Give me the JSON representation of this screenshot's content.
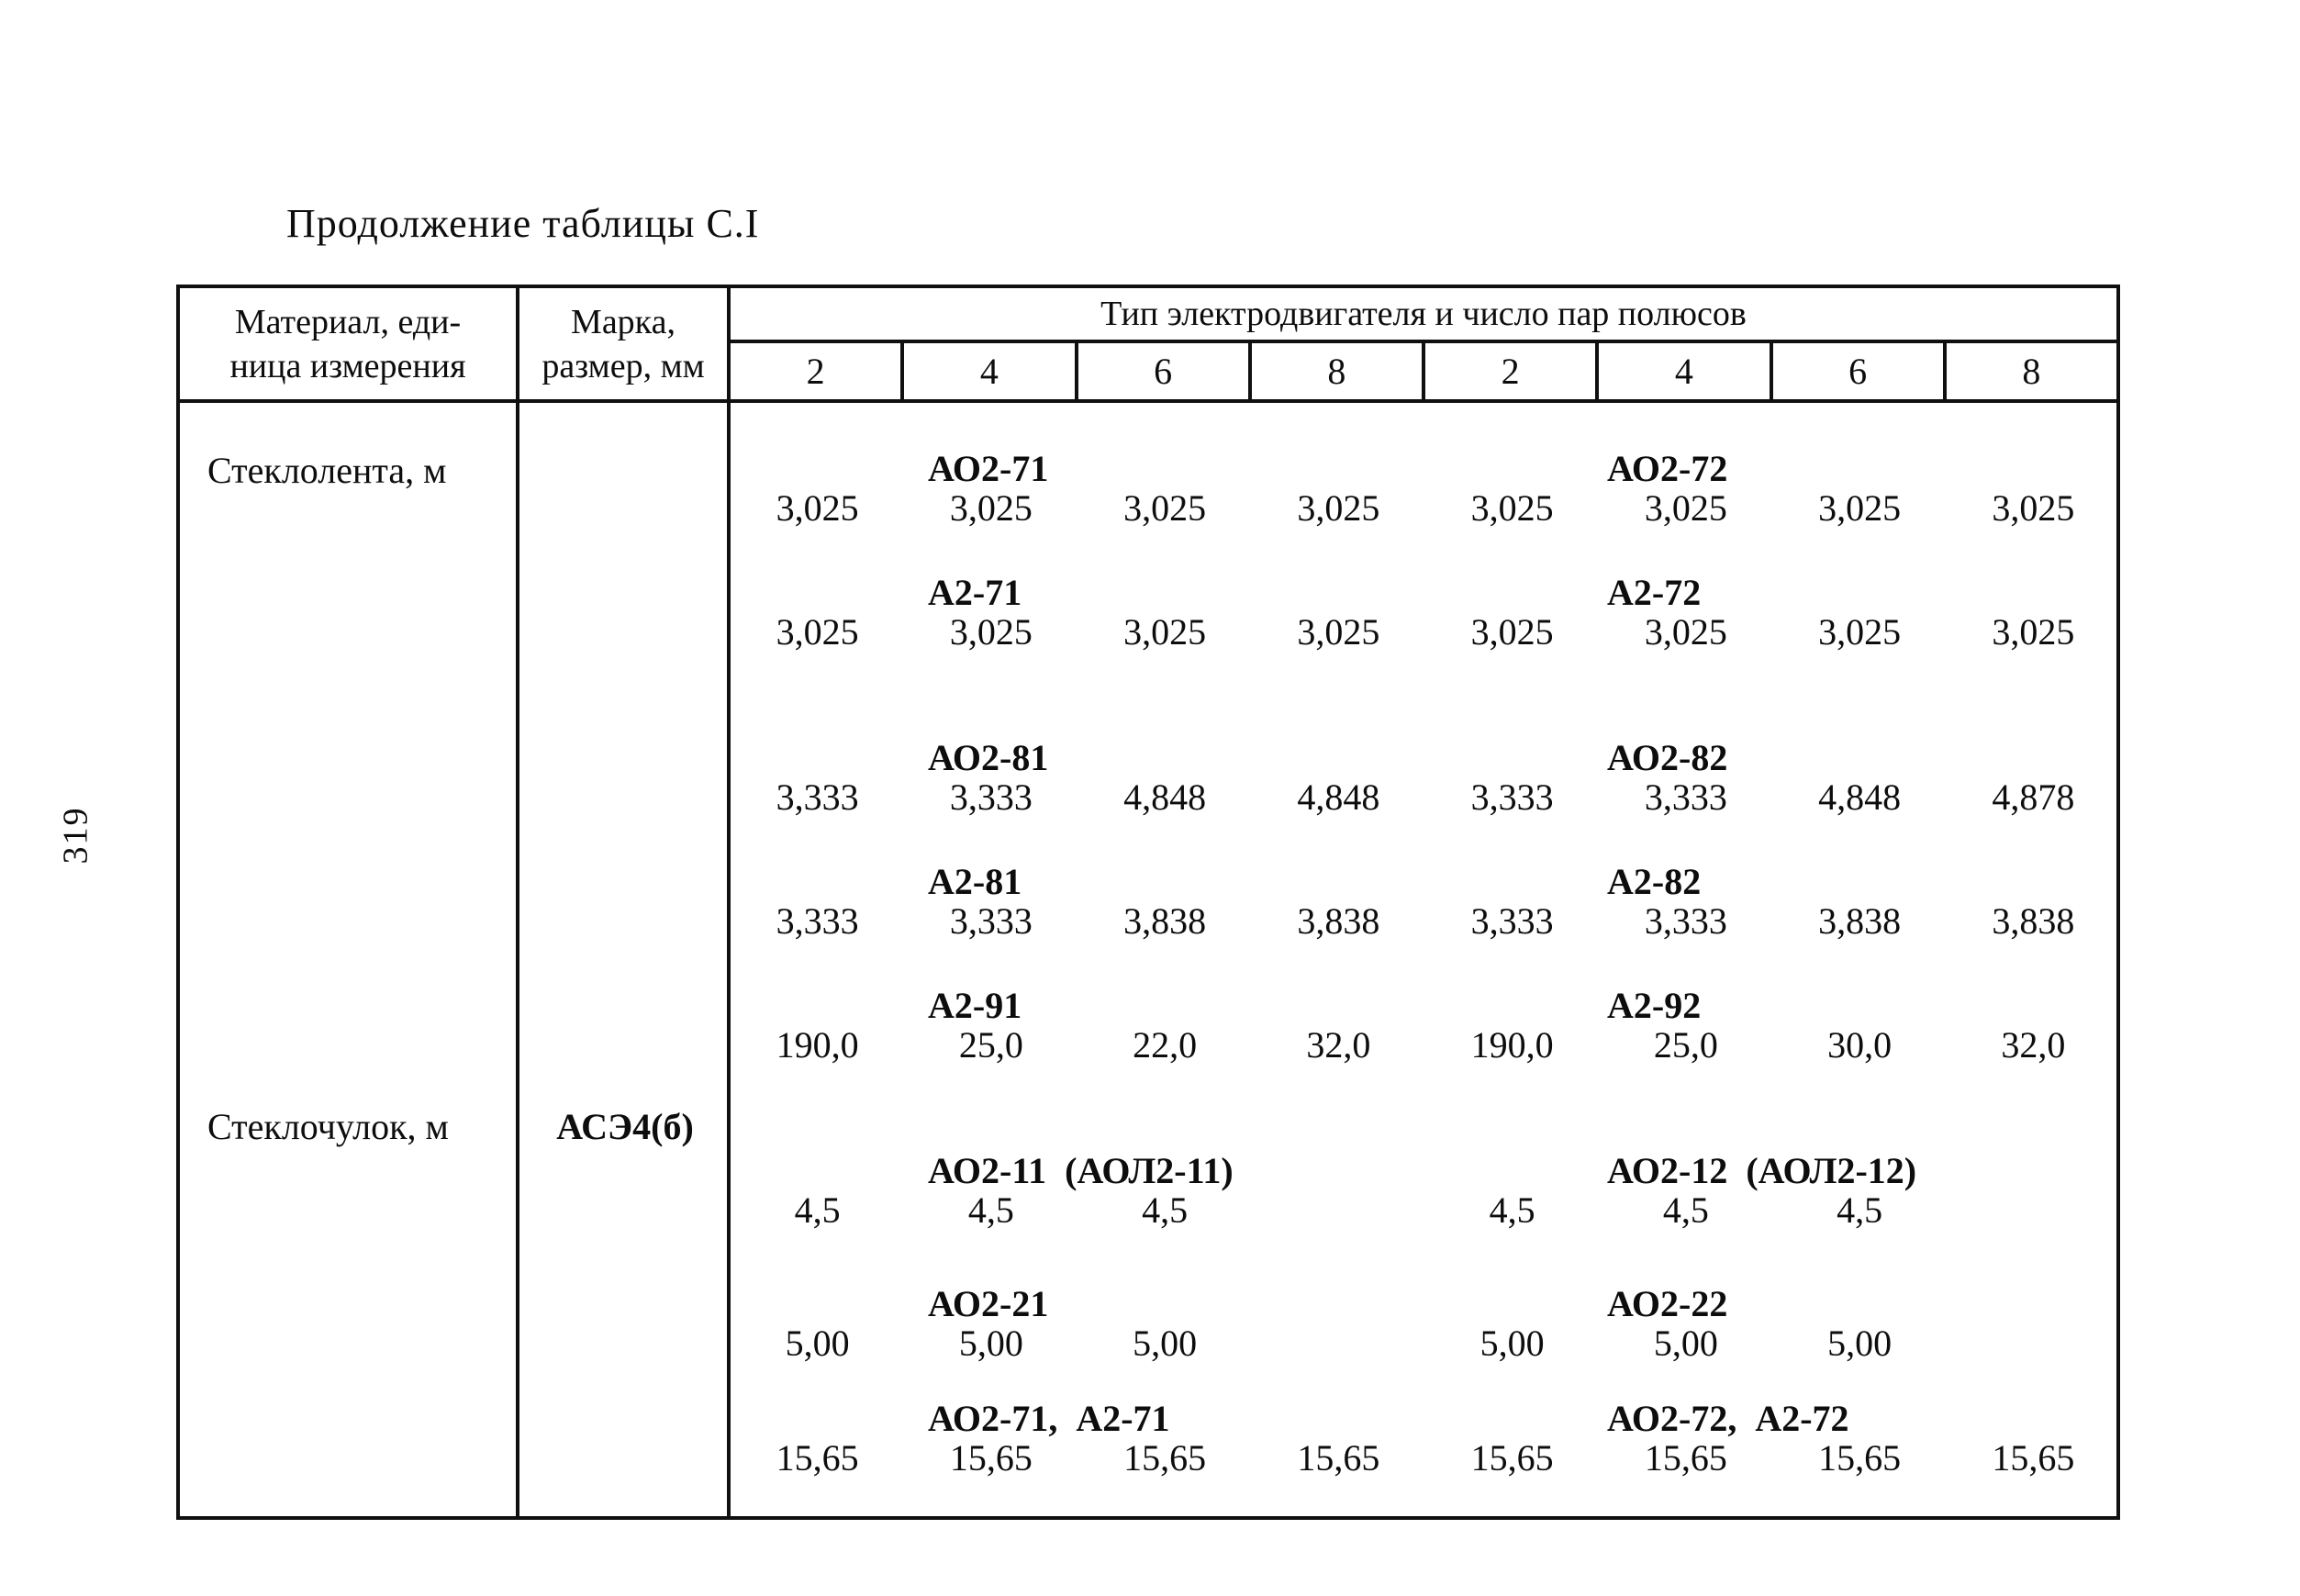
{
  "page": {
    "title": "Продолжение таблицы С.I",
    "page_number": "319"
  },
  "table": {
    "header": {
      "material_line1": "Материал, еди-",
      "material_line2": "ница измерения",
      "mark_line1": "Марка,",
      "mark_line2": "размер, мм",
      "span_header": "Тип электродвигателя и число пар полюсов",
      "pole_columns": [
        "2",
        "4",
        "6",
        "8",
        "2",
        "4",
        "6",
        "8"
      ]
    },
    "groups": [
      {
        "material": "Стеклолента, м",
        "mark": "",
        "rows": [
          {
            "label_left": "АО2-71",
            "label_right": "АО2-72",
            "values": [
              "3,025",
              "3,025",
              "3,025",
              "3,025",
              "3,025",
              "3,025",
              "3,025",
              "3,025"
            ]
          },
          {
            "label_left": "А2-71",
            "label_right": "А2-72",
            "values": [
              "3,025",
              "3,025",
              "3,025",
              "3,025",
              "3,025",
              "3,025",
              "3,025",
              "3,025"
            ]
          },
          {
            "label_left": "АО2-81",
            "label_right": "АО2-82",
            "values": [
              "3,333",
              "3,333",
              "4,848",
              "4,848",
              "3,333",
              "3,333",
              "4,848",
              "4,878"
            ]
          },
          {
            "label_left": "А2-81",
            "label_right": "А2-82",
            "values": [
              "3,333",
              "3,333",
              "3,838",
              "3,838",
              "3,333",
              "3,333",
              "3,838",
              "3,838"
            ]
          },
          {
            "label_left": "А2-91",
            "label_right": "А2-92",
            "values": [
              "190,0",
              "25,0",
              "22,0",
              "32,0",
              "190,0",
              "25,0",
              "30,0",
              "32,0"
            ]
          }
        ]
      },
      {
        "material": "Стеклочулок, м",
        "mark": "АСЭ4(б)",
        "rows": [
          {
            "label_left": "АО2-11  (АОЛ2-11)",
            "label_right": "АО2-12  (АОЛ2-12)",
            "values": [
              "4,5",
              "4,5",
              "4,5",
              "",
              "4,5",
              "4,5",
              "4,5",
              ""
            ]
          },
          {
            "label_left": "АО2-21",
            "label_right": "АО2-22",
            "values": [
              "5,00",
              "5,00",
              "5,00",
              "",
              "5,00",
              "5,00",
              "5,00",
              ""
            ]
          },
          {
            "label_left": "АО2-71,  А2-71",
            "label_right": "АО2-72,  А2-72",
            "values": [
              "15,65",
              "15,65",
              "15,65",
              "15,65",
              "15,65",
              "15,65",
              "15,65",
              "15,65"
            ]
          }
        ]
      }
    ]
  }
}
